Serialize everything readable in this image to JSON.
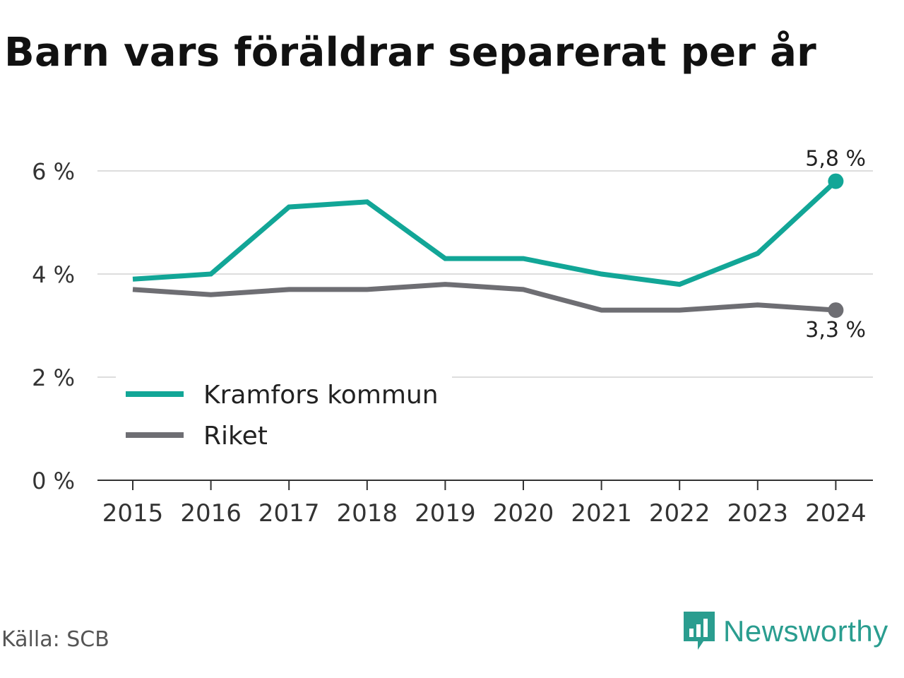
{
  "title": "Barn vars föräldrar separerat per år",
  "source": "Källa: SCB",
  "brand": {
    "name": "Newsworthy",
    "color": "#2a9d8f",
    "icon": "newsworthy-logo-icon"
  },
  "chart_data": {
    "type": "line",
    "title": "Barn vars föräldrar separerat per år",
    "xlabel": "",
    "ylabel": "",
    "categories": [
      "2015",
      "2016",
      "2017",
      "2018",
      "2019",
      "2020",
      "2021",
      "2022",
      "2023",
      "2024"
    ],
    "series": [
      {
        "name": "Kramfors kommun",
        "color": "#12a697",
        "values": [
          3.9,
          4.0,
          5.3,
          5.4,
          4.3,
          4.3,
          4.0,
          3.8,
          4.4,
          5.8
        ],
        "end_label": "5,8 %"
      },
      {
        "name": "Riket",
        "color": "#6e6e73",
        "values": [
          3.7,
          3.6,
          3.7,
          3.7,
          3.8,
          3.7,
          3.3,
          3.3,
          3.4,
          3.3
        ],
        "end_label": "3,3 %"
      }
    ],
    "ylim": [
      0,
      6
    ],
    "yticks": [
      0,
      2,
      4,
      6
    ],
    "ytick_labels": [
      "0 %",
      "2 %",
      "4 %",
      "6 %"
    ],
    "grid": true,
    "legend": "bottom-left"
  }
}
